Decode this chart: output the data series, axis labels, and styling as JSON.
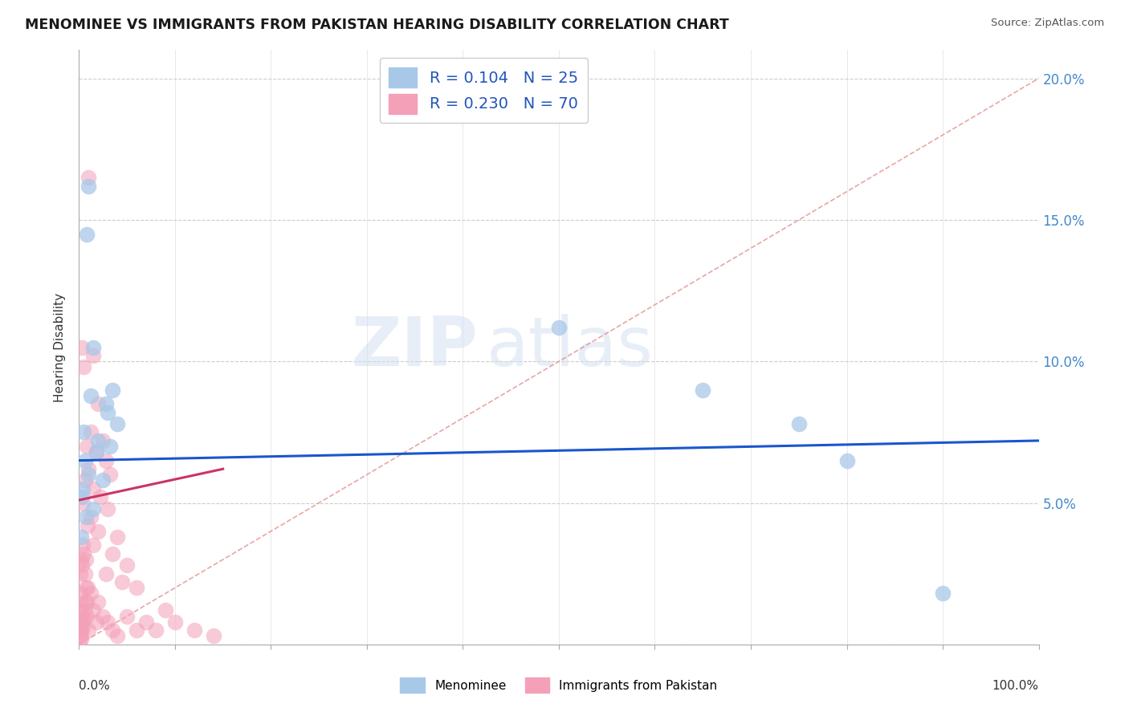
{
  "title": "MENOMINEE VS IMMIGRANTS FROM PAKISTAN HEARING DISABILITY CORRELATION CHART",
  "source": "Source: ZipAtlas.com",
  "ylabel": "Hearing Disability",
  "legend_blue": "Menominee",
  "legend_pink": "Immigrants from Pakistan",
  "r_blue": 0.104,
  "n_blue": 25,
  "r_pink": 0.23,
  "n_pink": 70,
  "blue_color": "#a8c8e8",
  "pink_color": "#f4a0b8",
  "blue_line_color": "#1a56cc",
  "pink_line_color": "#cc3366",
  "diag_color": "#e08080",
  "watermark": "ZIPatlas",
  "blue_scatter": [
    [
      1.0,
      16.2
    ],
    [
      0.8,
      14.5
    ],
    [
      1.5,
      10.5
    ],
    [
      3.5,
      9.0
    ],
    [
      1.2,
      8.8
    ],
    [
      2.8,
      8.5
    ],
    [
      3.0,
      8.2
    ],
    [
      4.0,
      7.8
    ],
    [
      0.5,
      7.5
    ],
    [
      2.0,
      7.2
    ],
    [
      1.8,
      6.8
    ],
    [
      0.6,
      6.5
    ],
    [
      3.2,
      7.0
    ],
    [
      1.0,
      6.0
    ],
    [
      2.5,
      5.8
    ],
    [
      0.4,
      5.5
    ],
    [
      0.3,
      5.2
    ],
    [
      1.5,
      4.8
    ],
    [
      0.7,
      4.5
    ],
    [
      0.2,
      3.8
    ],
    [
      50.0,
      11.2
    ],
    [
      65.0,
      9.0
    ],
    [
      75.0,
      7.8
    ],
    [
      80.0,
      6.5
    ],
    [
      90.0,
      1.8
    ]
  ],
  "pink_scatter": [
    [
      1.0,
      16.5
    ],
    [
      0.3,
      10.5
    ],
    [
      1.5,
      10.2
    ],
    [
      0.5,
      9.8
    ],
    [
      2.0,
      8.5
    ],
    [
      1.2,
      7.5
    ],
    [
      2.5,
      7.2
    ],
    [
      0.8,
      7.0
    ],
    [
      1.8,
      6.8
    ],
    [
      2.8,
      6.5
    ],
    [
      1.0,
      6.2
    ],
    [
      3.2,
      6.0
    ],
    [
      0.6,
      5.8
    ],
    [
      1.5,
      5.5
    ],
    [
      2.2,
      5.2
    ],
    [
      0.4,
      5.0
    ],
    [
      3.0,
      4.8
    ],
    [
      1.2,
      4.5
    ],
    [
      0.9,
      4.2
    ],
    [
      2.0,
      4.0
    ],
    [
      4.0,
      3.8
    ],
    [
      1.5,
      3.5
    ],
    [
      3.5,
      3.2
    ],
    [
      0.7,
      3.0
    ],
    [
      5.0,
      2.8
    ],
    [
      2.8,
      2.5
    ],
    [
      4.5,
      2.2
    ],
    [
      6.0,
      2.0
    ],
    [
      0.1,
      1.8
    ],
    [
      0.2,
      1.5
    ],
    [
      0.15,
      1.2
    ],
    [
      0.3,
      1.0
    ],
    [
      0.12,
      0.8
    ],
    [
      0.25,
      0.5
    ],
    [
      0.08,
      0.3
    ],
    [
      0.18,
      0.2
    ],
    [
      0.05,
      0.1
    ],
    [
      0.22,
      0.4
    ],
    [
      0.35,
      0.6
    ],
    [
      0.4,
      0.8
    ],
    [
      0.6,
      1.2
    ],
    [
      0.8,
      1.0
    ],
    [
      1.0,
      0.5
    ],
    [
      0.5,
      0.9
    ],
    [
      0.7,
      1.5
    ],
    [
      1.2,
      1.8
    ],
    [
      0.9,
      2.0
    ],
    [
      1.5,
      1.2
    ],
    [
      2.0,
      1.5
    ],
    [
      1.8,
      0.8
    ],
    [
      2.5,
      1.0
    ],
    [
      3.0,
      0.8
    ],
    [
      3.5,
      0.5
    ],
    [
      4.0,
      0.3
    ],
    [
      5.0,
      1.0
    ],
    [
      6.0,
      0.5
    ],
    [
      7.0,
      0.8
    ],
    [
      8.0,
      0.5
    ],
    [
      9.0,
      1.2
    ],
    [
      10.0,
      0.8
    ],
    [
      12.0,
      0.5
    ],
    [
      14.0,
      0.3
    ],
    [
      0.1,
      2.5
    ],
    [
      0.2,
      3.0
    ],
    [
      0.3,
      2.8
    ],
    [
      0.4,
      3.5
    ],
    [
      0.5,
      3.2
    ],
    [
      0.6,
      2.5
    ],
    [
      0.7,
      2.0
    ],
    [
      0.8,
      1.5
    ]
  ],
  "blue_trend": [
    0.0,
    6.5,
    100.0,
    7.2
  ],
  "pink_trend": [
    0.0,
    5.1,
    15.0,
    6.2
  ],
  "diag_trend": [
    0.0,
    0.0,
    100.0,
    20.0
  ],
  "xlim": [
    0,
    100
  ],
  "ylim": [
    0,
    21
  ],
  "yticks": [
    0,
    5,
    10,
    15,
    20
  ],
  "xtick_positions": [
    0,
    10,
    20,
    30,
    40,
    50,
    60,
    70,
    80,
    90,
    100
  ],
  "grid_color": "#cccccc",
  "background_color": "#ffffff"
}
